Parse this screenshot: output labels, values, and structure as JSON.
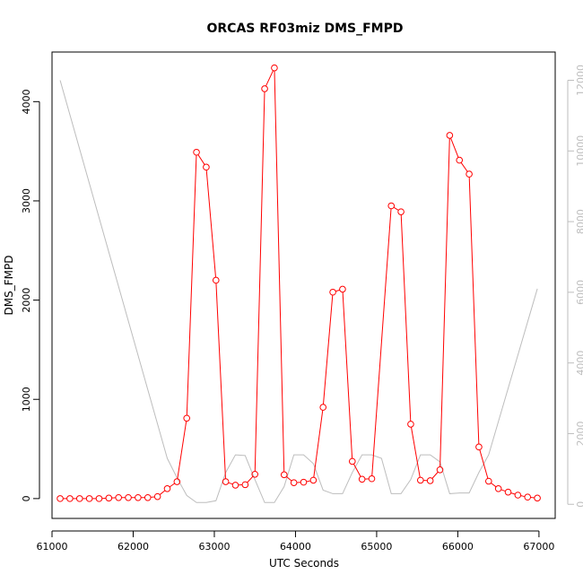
{
  "chart_data": {
    "type": "line",
    "title": "ORCAS RF03miz DMS_FMPD",
    "xlabel": "UTC Seconds",
    "ylabel": "DMS_FMPD",
    "xlim": [
      61000,
      67200
    ],
    "ylim": [
      -200,
      4500
    ],
    "y2lim": [
      -400,
      12800
    ],
    "x_ticks": [
      61000,
      62000,
      63000,
      64000,
      65000,
      66000,
      67000
    ],
    "y_ticks": [
      0,
      1000,
      2000,
      3000,
      4000
    ],
    "y2_ticks": [
      0,
      2000,
      4000,
      6000,
      8000,
      10000,
      12000
    ],
    "grid": false,
    "series": [
      {
        "axis": "left",
        "color": "#ff0000",
        "marker": "open-circle",
        "x": [
          61100,
          61220,
          61340,
          61460,
          61580,
          61700,
          61820,
          61940,
          62060,
          62180,
          62300,
          62420,
          62540,
          62660,
          62780,
          62900,
          63020,
          63140,
          63260,
          63380,
          63500,
          63620,
          63740,
          63860,
          63980,
          64100,
          64220,
          64340,
          64460,
          64580,
          64700,
          64820,
          64940,
          65180,
          65300,
          65420,
          65540,
          65660,
          65780,
          65900,
          66020,
          66140,
          66260,
          66380,
          66500,
          66620,
          66740,
          66860,
          66980
        ],
        "values": [
          0,
          0,
          0,
          0,
          0,
          5,
          10,
          10,
          10,
          10,
          20,
          100,
          170,
          810,
          3490,
          3340,
          2200,
          170,
          135,
          140,
          245,
          4130,
          4340,
          240,
          160,
          165,
          185,
          920,
          2080,
          2110,
          375,
          195,
          200,
          2950,
          2890,
          750,
          185,
          180,
          290,
          3660,
          3410,
          3270,
          520,
          175,
          100,
          65,
          35,
          15,
          5
        ]
      },
      {
        "axis": "right",
        "color": "#bdbdbd",
        "marker": "none",
        "x": [
          61100,
          62420,
          62540,
          62660,
          62780,
          62900,
          63020,
          63140,
          63260,
          63380,
          63500,
          63620,
          63740,
          63860,
          63980,
          64100,
          64220,
          64340,
          64460,
          64580,
          64700,
          64820,
          64940,
          65060,
          65180,
          65300,
          65420,
          65540,
          65660,
          65780,
          65900,
          66020,
          66140,
          66260,
          66380,
          66980
        ],
        "values": [
          12000,
          1300,
          750,
          250,
          50,
          50,
          100,
          900,
          1400,
          1380,
          700,
          50,
          50,
          500,
          1400,
          1400,
          1150,
          400,
          300,
          300,
          900,
          1400,
          1400,
          1300,
          300,
          300,
          700,
          1400,
          1400,
          1200,
          300,
          320,
          320,
          900,
          1400,
          6100
        ]
      }
    ]
  }
}
